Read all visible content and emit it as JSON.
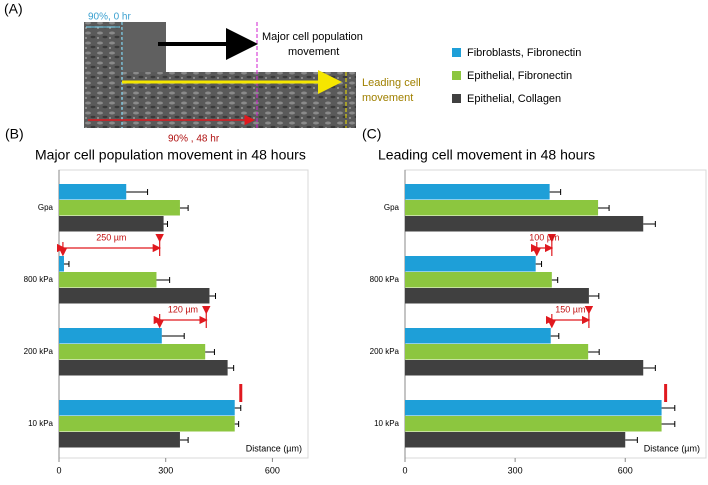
{
  "panel_a": {
    "label": "(A)",
    "start_label": "90%, 0 hr",
    "end_label": "90% , 48 hr",
    "major_label": [
      "Major cell population",
      "movement"
    ],
    "leading_label": [
      "Leading cell",
      "movement"
    ]
  },
  "chart_data": [
    {
      "type": "bar",
      "orientation": "horizontal",
      "panel_label": "(B)",
      "title": "Major cell population movement in 48 hours",
      "x_label": "Distance (µm)",
      "categories": [
        "Gpa",
        "800 kPa",
        "200 kPa",
        "10 kPa"
      ],
      "series": [
        {
          "name": "Fibroblasts, Fibronectin",
          "color": "#1e9fd8",
          "values": [
            189,
            14,
            289,
            494
          ],
          "errors": [
            60,
            14,
            63,
            17
          ]
        },
        {
          "name": "Epithelial, Fibronectin",
          "color": "#8cc63f",
          "values": [
            340,
            274,
            411,
            494
          ],
          "errors": [
            23,
            37,
            26,
            11
          ]
        },
        {
          "name": "Epithelial, Collagen",
          "color": "#404040",
          "values": [
            294,
            423,
            474,
            340
          ],
          "errors": [
            11,
            17,
            17,
            23
          ]
        }
      ],
      "xlim": [
        0,
        700
      ],
      "xticks": [
        0,
        300,
        600
      ],
      "annotations": [
        {
          "text": "250 µm",
          "from": 11,
          "to": 283
        },
        {
          "text": "120 µm",
          "from": 283,
          "to": 414
        }
      ],
      "marker": 511
    },
    {
      "type": "bar",
      "orientation": "horizontal",
      "panel_label": "(C)",
      "title": "Leading cell movement in 48 hours",
      "x_label": "Distance (µm)",
      "categories": [
        "Gpa",
        "800 kPa",
        "200 kPa",
        "10 kPa"
      ],
      "series": [
        {
          "color": "#1e9fd8",
          "values": [
            394,
            356,
            397,
            699
          ],
          "errors": [
            30,
            16,
            22,
            36
          ]
        },
        {
          "color": "#8cc63f",
          "values": [
            526,
            400,
            499,
            699
          ],
          "errors": [
            30,
            16,
            30,
            36
          ]
        },
        {
          "color": "#404040",
          "values": [
            649,
            501,
            649,
            600
          ],
          "errors": [
            33,
            27,
            33,
            33
          ]
        }
      ],
      "xlim": [
        0,
        820
      ],
      "xticks": [
        0,
        300,
        600
      ],
      "annotations": [
        {
          "text": "100 µm",
          "from": 359,
          "to": 400
        },
        {
          "text": "150 µm",
          "from": 400,
          "to": 501
        }
      ],
      "marker": 710
    }
  ]
}
